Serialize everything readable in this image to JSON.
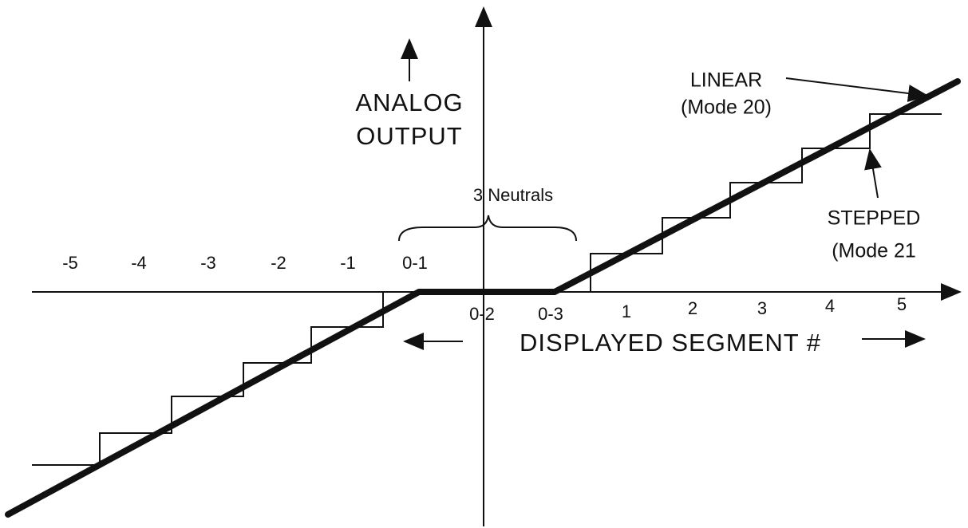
{
  "axis_label_y": [
    "ANALOG",
    "OUTPUT"
  ],
  "axis_label_x": "DISPLAYED SEGMENT #",
  "linear": {
    "label": "LINEAR",
    "mode": "(Mode 20)"
  },
  "stepped": {
    "label": "STEPPED",
    "mode": "(Mode 21"
  },
  "neutrals": "3 Neutrals",
  "ticks_above": [
    "-5",
    "-4",
    "-3",
    "-2",
    "-1",
    "0-1"
  ],
  "ticks_below": [
    "0-2",
    "0-3",
    "1",
    "2",
    "3",
    "4",
    "5"
  ]
}
